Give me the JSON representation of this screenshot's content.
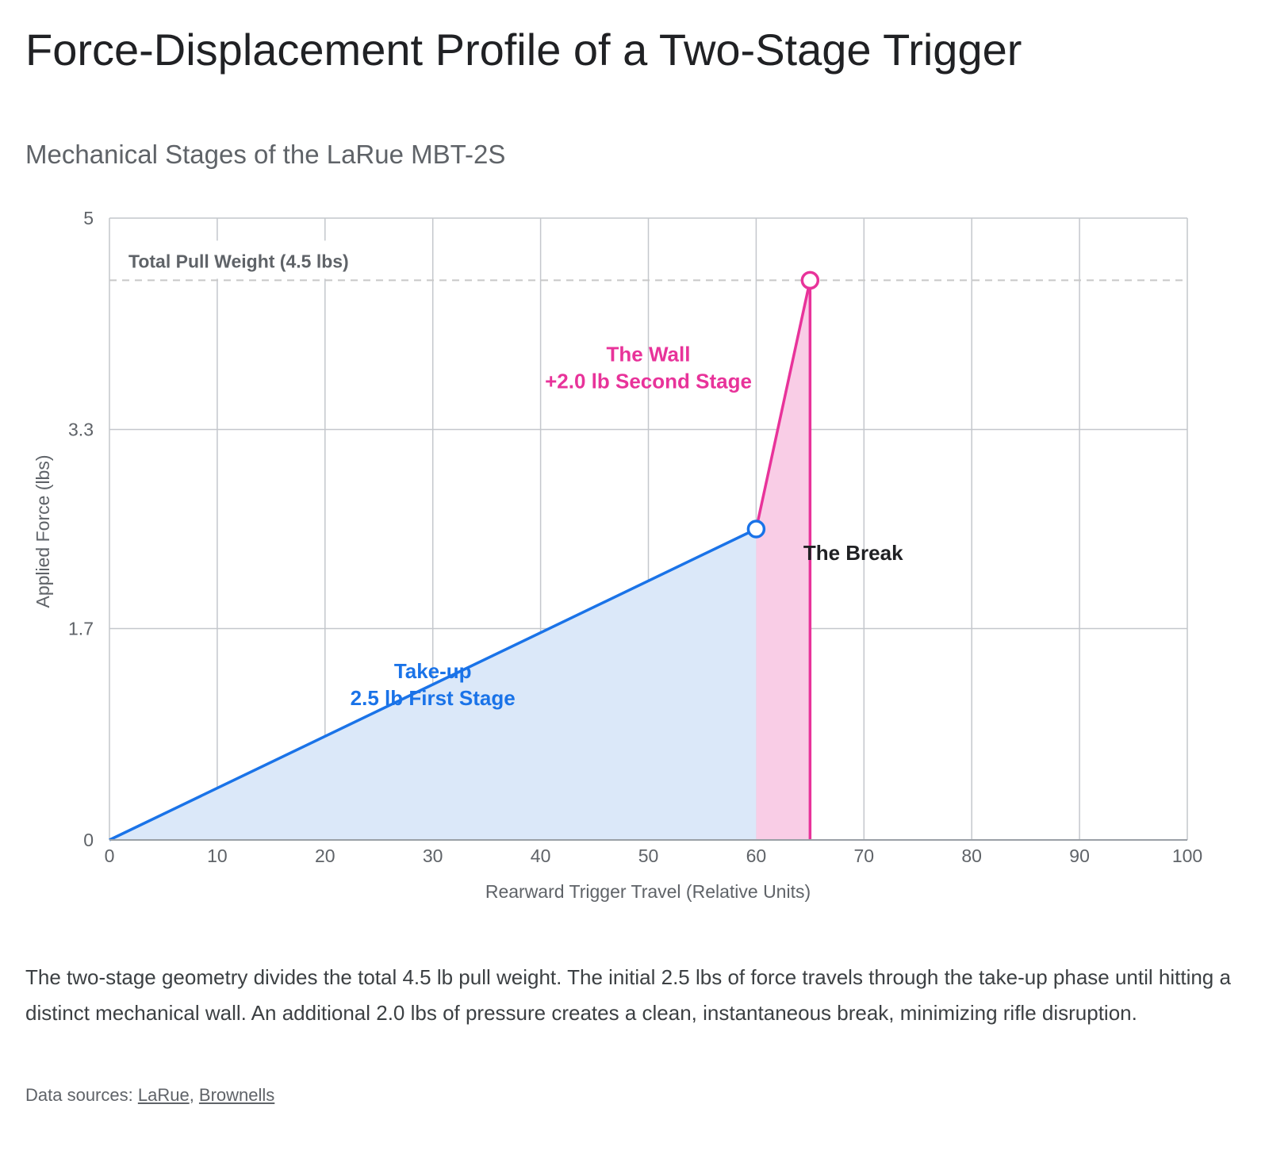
{
  "title": "Force-Displacement Profile of a Two-Stage Trigger",
  "subtitle": "Mechanical Stages of the LaRue MBT-2S",
  "description": "The two-stage geometry divides the total 4.5 lb pull weight. The initial 2.5 lbs of force travels through the take-up phase until hitting a distinct mechanical wall. An additional 2.0 lbs of pressure creates a clean, instantaneous break, minimizing rifle disruption.",
  "sources": {
    "prefix": "Data sources: ",
    "separator": ", ",
    "links": [
      "LaRue",
      "Brownells"
    ]
  },
  "colors": {
    "stage1": "#1a73e8",
    "stage1_fill": "#dbe8f9",
    "stage2": "#e8339a",
    "stage2_fill": "#f9cde6",
    "grid": "#c4c7cc",
    "reference": "#c8c8c8"
  },
  "chart_data": {
    "type": "area",
    "xlabel": "Rearward Trigger Travel (Relative Units)",
    "ylabel": "Applied Force (lbs)",
    "xlim": [
      0,
      100
    ],
    "ylim": [
      0,
      5
    ],
    "xticks": [
      0,
      10,
      20,
      30,
      40,
      50,
      60,
      70,
      80,
      90,
      100
    ],
    "yticks": [
      0,
      1.7,
      3.3,
      5
    ],
    "ytick_labels": [
      "0",
      "1.7",
      "3.3",
      "5"
    ],
    "grid": true,
    "series": [
      {
        "name": "Take-up",
        "color": "#1a73e8",
        "fill": "#dbe8f9",
        "points": [
          [
            0,
            0
          ],
          [
            60,
            2.5
          ]
        ],
        "end_marker": true
      },
      {
        "name": "The Wall",
        "color": "#e8339a",
        "fill": "#f9cde6",
        "points": [
          [
            60,
            2.5
          ],
          [
            65,
            4.5
          ]
        ],
        "end_marker": true
      }
    ],
    "break_line": {
      "x": 65,
      "y_top": 4.5,
      "color": "#e8339a"
    },
    "reference_line": {
      "y": 4.5,
      "label": "Total Pull Weight (4.5 lbs)"
    },
    "annotations": [
      {
        "id": "wall",
        "lines": [
          "The Wall",
          "+2.0 lb Second Stage"
        ],
        "x": 50,
        "y": 3.85,
        "color": "#e8339a"
      },
      {
        "id": "takeup",
        "lines": [
          "Take-up",
          "2.5 lb First Stage"
        ],
        "x": 30,
        "y": 1.3,
        "color": "#1a73e8"
      },
      {
        "id": "break",
        "lines": [
          "The Break"
        ],
        "x": 69,
        "y": 2.25,
        "color": "#202124"
      }
    ]
  }
}
